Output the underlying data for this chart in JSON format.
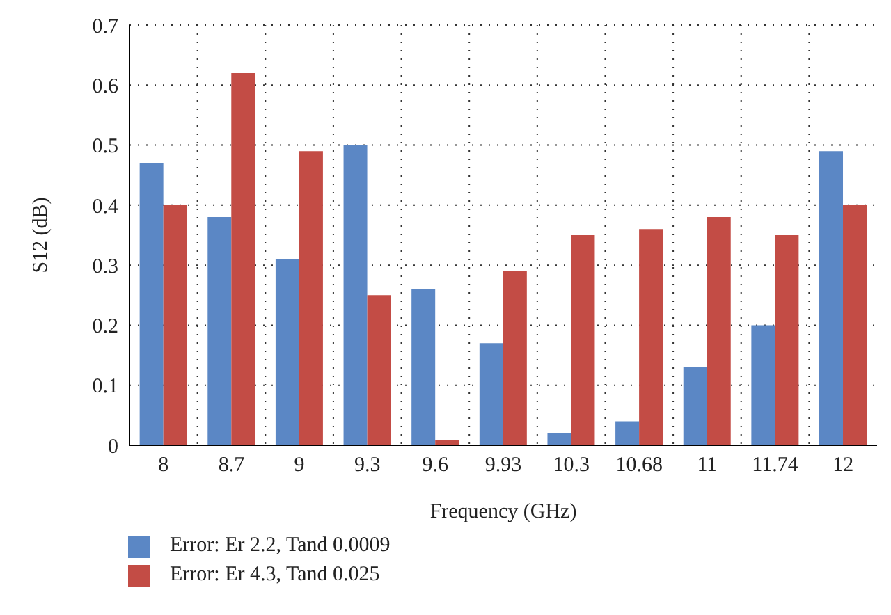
{
  "chart_data": {
    "type": "bar",
    "xlabel": "Frequency (GHz)",
    "ylabel": "S12 (dB)",
    "categories": [
      "8",
      "8.7",
      "9",
      "9.3",
      "9.6",
      "9.93",
      "10.3",
      "10.68",
      "11",
      "11.74",
      "12"
    ],
    "series": [
      {
        "name": "Error: Er 2.2, Tand 0.0009",
        "color": "#5b87c5",
        "values": [
          0.47,
          0.38,
          0.31,
          0.5,
          0.26,
          0.17,
          0.02,
          0.04,
          0.13,
          0.2,
          0.49
        ]
      },
      {
        "name": "Error: Er 4.3, Tand 0.025",
        "color": "#c34c45",
        "values": [
          0.4,
          0.62,
          0.49,
          0.25,
          0.008,
          0.29,
          0.35,
          0.36,
          0.38,
          0.35,
          0.4
        ]
      }
    ],
    "ylim": [
      0,
      0.7
    ],
    "yticks": [
      0,
      0.1,
      0.2,
      0.3,
      0.4,
      0.5,
      0.6,
      0.7
    ],
    "grid": true,
    "legend": "bottom left"
  }
}
